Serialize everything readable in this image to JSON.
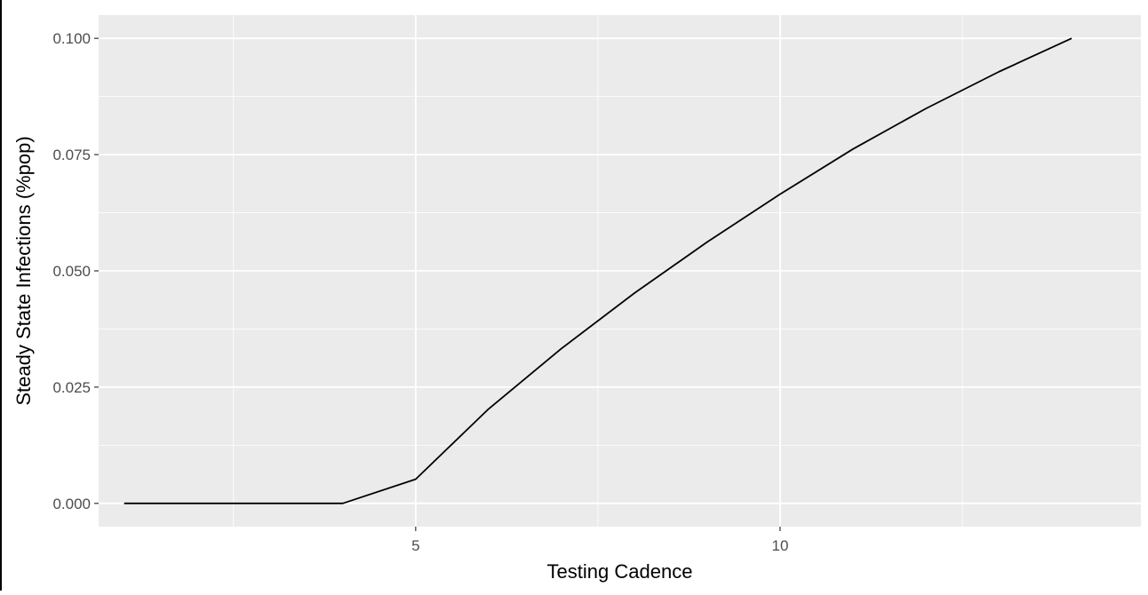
{
  "chart_data": {
    "type": "line",
    "title": "",
    "xlabel": "Testing Cadence",
    "ylabel": "Steady State Infections (%pop)",
    "xlim": [
      0.65,
      14.95
    ],
    "ylim": [
      -0.005,
      0.105
    ],
    "x_ticks": [
      5,
      10
    ],
    "x_tick_labels": [
      "5",
      "10"
    ],
    "x_minor_ticks": [
      2.5,
      7.5,
      12.5
    ],
    "y_ticks": [
      0.0,
      0.025,
      0.05,
      0.075,
      0.1
    ],
    "y_tick_labels": [
      "0.000",
      "0.025",
      "0.050",
      "0.075",
      "0.100"
    ],
    "y_minor_ticks": [
      0.0125,
      0.0375,
      0.0625,
      0.0875
    ],
    "grid": true,
    "panel_background": "#ebebeb",
    "grid_color": "#ffffff",
    "series": [
      {
        "color": "#000000",
        "x": [
          1,
          2,
          3,
          4,
          5,
          6,
          7,
          8,
          9,
          10,
          11,
          12,
          13,
          14
        ],
        "y": [
          0.0,
          0.0,
          0.0,
          0.0,
          0.0052,
          0.0203,
          0.0333,
          0.0452,
          0.0562,
          0.0665,
          0.0762,
          0.0849,
          0.0928,
          0.1
        ]
      }
    ]
  }
}
